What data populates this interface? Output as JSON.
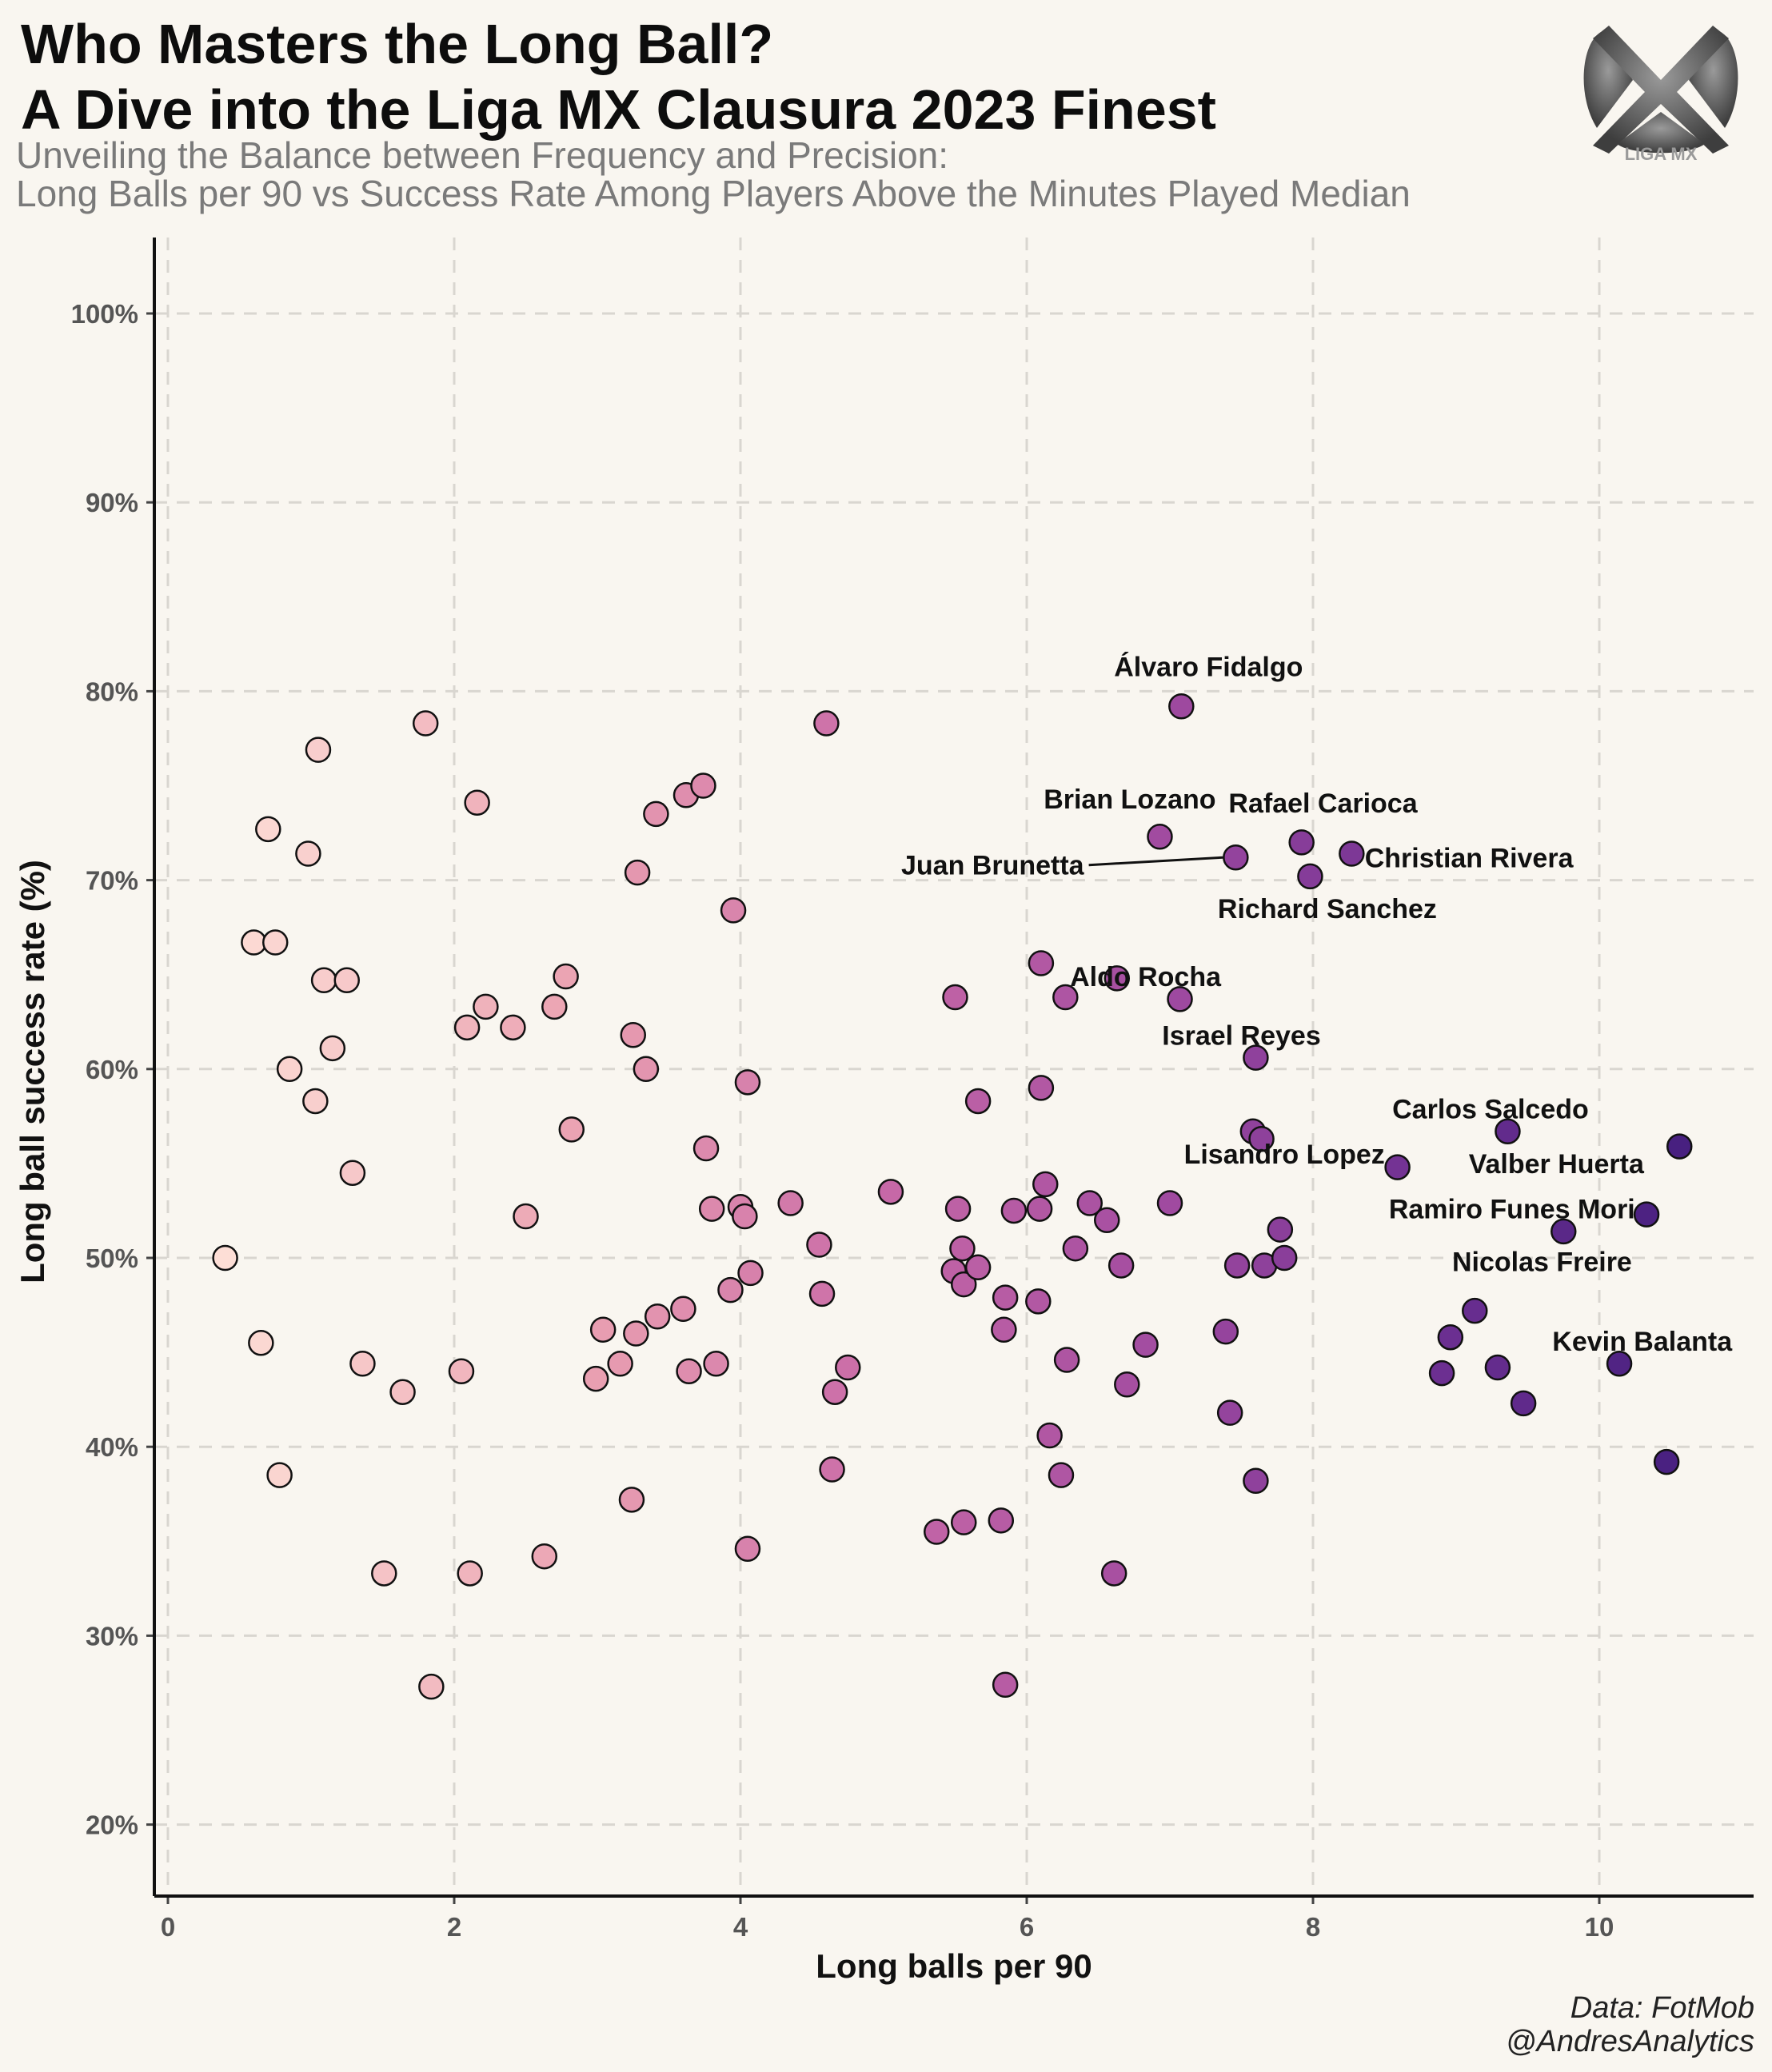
{
  "title": [
    "Who Masters the Long Ball?",
    "A Dive into the Liga MX Clausura 2023 Finest"
  ],
  "subtitle": [
    "Unveiling the Balance between Frequency and Precision:",
    "Long Balls per 90 vs Success Rate Among Players Above the Minutes Played Median"
  ],
  "logo_text": "LIGA MX",
  "caption": [
    "Data: FotMob",
    "@AndresAnalytics"
  ],
  "colors": {
    "background": "#f9f6f0",
    "low": "#fcd5cc",
    "mid": "#c466a3",
    "high": "#4d2383",
    "grid": "#d9d6d0"
  },
  "chart_data": {
    "type": "scatter",
    "xlabel": "Long balls per 90",
    "ylabel": "Long ball success rate (%)",
    "xlim": [
      -0.1,
      11.1
    ],
    "ylim": [
      16,
      104
    ],
    "x_ticks": [
      0,
      2,
      4,
      6,
      8,
      10
    ],
    "y_ticks": [
      20,
      30,
      40,
      50,
      60,
      70,
      80,
      90,
      100
    ],
    "y_tick_suffix": "%",
    "grid": true,
    "color_by": "x",
    "points": [
      {
        "x": 0.4,
        "y": 50.0
      },
      {
        "x": 0.6,
        "y": 66.7
      },
      {
        "x": 0.65,
        "y": 45.5
      },
      {
        "x": 0.7,
        "y": 72.7
      },
      {
        "x": 0.75,
        "y": 66.7
      },
      {
        "x": 0.78,
        "y": 38.5
      },
      {
        "x": 0.85,
        "y": 60.0
      },
      {
        "x": 0.98,
        "y": 71.4
      },
      {
        "x": 1.03,
        "y": 58.3
      },
      {
        "x": 1.05,
        "y": 76.9
      },
      {
        "x": 1.09,
        "y": 64.7
      },
      {
        "x": 1.15,
        "y": 61.1
      },
      {
        "x": 1.25,
        "y": 64.7
      },
      {
        "x": 1.29,
        "y": 54.5
      },
      {
        "x": 1.36,
        "y": 44.4
      },
      {
        "x": 1.51,
        "y": 33.3
      },
      {
        "x": 1.64,
        "y": 42.9
      },
      {
        "x": 1.8,
        "y": 78.3
      },
      {
        "x": 1.84,
        "y": 27.3
      },
      {
        "x": 2.05,
        "y": 44.0
      },
      {
        "x": 2.09,
        "y": 62.2
      },
      {
        "x": 2.11,
        "y": 33.3
      },
      {
        "x": 2.16,
        "y": 74.1
      },
      {
        "x": 2.22,
        "y": 63.3
      },
      {
        "x": 2.41,
        "y": 62.2
      },
      {
        "x": 2.5,
        "y": 52.2
      },
      {
        "x": 2.63,
        "y": 34.2
      },
      {
        "x": 2.7,
        "y": 63.3
      },
      {
        "x": 2.78,
        "y": 64.9
      },
      {
        "x": 2.82,
        "y": 56.8
      },
      {
        "x": 2.99,
        "y": 43.6
      },
      {
        "x": 3.04,
        "y": 46.2
      },
      {
        "x": 3.16,
        "y": 44.4
      },
      {
        "x": 3.24,
        "y": 37.2
      },
      {
        "x": 3.25,
        "y": 61.8
      },
      {
        "x": 3.27,
        "y": 46.0
      },
      {
        "x": 3.28,
        "y": 70.4
      },
      {
        "x": 3.34,
        "y": 60.0
      },
      {
        "x": 3.41,
        "y": 73.5
      },
      {
        "x": 3.42,
        "y": 46.9
      },
      {
        "x": 3.6,
        "y": 47.3
      },
      {
        "x": 3.62,
        "y": 74.5
      },
      {
        "x": 3.64,
        "y": 44.0
      },
      {
        "x": 3.74,
        "y": 75.0
      },
      {
        "x": 3.76,
        "y": 55.8
      },
      {
        "x": 3.8,
        "y": 52.6
      },
      {
        "x": 3.83,
        "y": 44.4
      },
      {
        "x": 3.93,
        "y": 48.3
      },
      {
        "x": 3.95,
        "y": 68.4
      },
      {
        "x": 4.0,
        "y": 52.7
      },
      {
        "x": 4.03,
        "y": 52.2
      },
      {
        "x": 4.05,
        "y": 34.6
      },
      {
        "x": 4.05,
        "y": 59.3
      },
      {
        "x": 4.07,
        "y": 49.2
      },
      {
        "x": 4.35,
        "y": 52.9
      },
      {
        "x": 4.55,
        "y": 50.7
      },
      {
        "x": 4.57,
        "y": 48.1
      },
      {
        "x": 4.6,
        "y": 78.3
      },
      {
        "x": 4.64,
        "y": 38.8
      },
      {
        "x": 4.66,
        "y": 42.9
      },
      {
        "x": 4.75,
        "y": 44.2
      },
      {
        "x": 5.05,
        "y": 53.5
      },
      {
        "x": 5.37,
        "y": 35.5
      },
      {
        "x": 5.49,
        "y": 49.3
      },
      {
        "x": 5.5,
        "y": 63.8
      },
      {
        "x": 5.52,
        "y": 52.6
      },
      {
        "x": 5.55,
        "y": 50.5
      },
      {
        "x": 5.56,
        "y": 36.0
      },
      {
        "x": 5.56,
        "y": 48.6
      },
      {
        "x": 5.66,
        "y": 49.5
      },
      {
        "x": 5.66,
        "y": 58.3
      },
      {
        "x": 5.82,
        "y": 36.1
      },
      {
        "x": 5.84,
        "y": 46.2
      },
      {
        "x": 5.85,
        "y": 27.4
      },
      {
        "x": 5.85,
        "y": 47.9
      },
      {
        "x": 5.91,
        "y": 52.5
      },
      {
        "x": 6.08,
        "y": 47.7
      },
      {
        "x": 6.09,
        "y": 52.6
      },
      {
        "x": 6.1,
        "y": 65.6
      },
      {
        "x": 6.1,
        "y": 59.0
      },
      {
        "x": 6.13,
        "y": 53.9
      },
      {
        "x": 6.16,
        "y": 40.6
      },
      {
        "x": 6.24,
        "y": 38.5
      },
      {
        "x": 6.27,
        "y": 63.8
      },
      {
        "x": 6.28,
        "y": 44.6
      },
      {
        "x": 6.34,
        "y": 50.5
      },
      {
        "x": 6.44,
        "y": 52.9
      },
      {
        "x": 6.56,
        "y": 52.0
      },
      {
        "x": 6.61,
        "y": 33.3
      },
      {
        "x": 6.63,
        "y": 64.8
      },
      {
        "x": 6.66,
        "y": 49.6
      },
      {
        "x": 6.7,
        "y": 43.3
      },
      {
        "x": 6.83,
        "y": 45.4
      },
      {
        "x": 6.93,
        "y": 72.3
      },
      {
        "x": 7.0,
        "y": 52.9
      },
      {
        "x": 7.07,
        "y": 63.7
      },
      {
        "x": 7.08,
        "y": 79.2
      },
      {
        "x": 7.39,
        "y": 46.1
      },
      {
        "x": 7.42,
        "y": 41.8
      },
      {
        "x": 7.46,
        "y": 71.2
      },
      {
        "x": 7.47,
        "y": 49.6
      },
      {
        "x": 7.58,
        "y": 56.7
      },
      {
        "x": 7.6,
        "y": 60.6
      },
      {
        "x": 7.6,
        "y": 38.2
      },
      {
        "x": 7.64,
        "y": 56.3
      },
      {
        "x": 7.66,
        "y": 49.6
      },
      {
        "x": 7.77,
        "y": 51.5
      },
      {
        "x": 7.8,
        "y": 50.0
      },
      {
        "x": 7.92,
        "y": 72.0
      },
      {
        "x": 7.98,
        "y": 70.2
      },
      {
        "x": 8.27,
        "y": 71.4
      },
      {
        "x": 8.59,
        "y": 54.8
      },
      {
        "x": 8.9,
        "y": 43.9
      },
      {
        "x": 8.96,
        "y": 45.8
      },
      {
        "x": 9.13,
        "y": 47.2
      },
      {
        "x": 9.29,
        "y": 44.2
      },
      {
        "x": 9.36,
        "y": 56.7
      },
      {
        "x": 9.47,
        "y": 42.3
      },
      {
        "x": 9.75,
        "y": 51.4
      },
      {
        "x": 10.14,
        "y": 44.4
      },
      {
        "x": 10.33,
        "y": 52.3
      },
      {
        "x": 10.47,
        "y": 39.2
      },
      {
        "x": 10.56,
        "y": 55.9
      }
    ],
    "labels": [
      {
        "text": "Álvaro Fidalgo",
        "x": 7.08,
        "y": 79.2,
        "tx": 7.27,
        "ty": 81.3
      },
      {
        "text": "Brian Lozano",
        "x": 6.93,
        "y": 72.3,
        "tx": 6.72,
        "ty": 74.3
      },
      {
        "text": "Rafael Carioca",
        "x": 7.92,
        "y": 72.0,
        "tx": 8.07,
        "ty": 74.1
      },
      {
        "text": "Juan Brunetta",
        "x": 7.46,
        "y": 71.2,
        "tx": 6.4,
        "ty": 70.8,
        "leader": true
      },
      {
        "text": "Christian Rivera",
        "x": 8.27,
        "y": 71.4,
        "tx": 9.09,
        "ty": 71.2
      },
      {
        "text": "Richard Sanchez",
        "x": 7.98,
        "y": 70.2,
        "tx": 8.1,
        "ty": 68.5
      },
      {
        "text": "Aldo Rocha",
        "x": 6.63,
        "y": 64.8,
        "tx": 6.83,
        "ty": 64.9
      },
      {
        "text": "Israel Reyes",
        "x": 7.6,
        "y": 60.6,
        "tx": 7.5,
        "ty": 61.8
      },
      {
        "text": "Carlos Salcedo",
        "x": 9.36,
        "y": 56.7,
        "tx": 9.24,
        "ty": 57.9
      },
      {
        "text": "Lisandro Lopez",
        "x": 8.59,
        "y": 54.8,
        "tx": 7.8,
        "ty": 55.5
      },
      {
        "text": "Valber Huerta",
        "x": 10.56,
        "y": 55.9,
        "tx": 9.7,
        "ty": 55.0
      },
      {
        "text": "Ramiro Funes Mori",
        "x": 10.33,
        "y": 52.3,
        "tx": 9.39,
        "ty": 52.6
      },
      {
        "text": "Nicolas Freire",
        "x": 9.75,
        "y": 51.4,
        "tx": 9.6,
        "ty": 49.8
      },
      {
        "text": "Kevin Balanta",
        "x": 10.14,
        "y": 44.4,
        "tx": 10.3,
        "ty": 45.6
      }
    ]
  }
}
